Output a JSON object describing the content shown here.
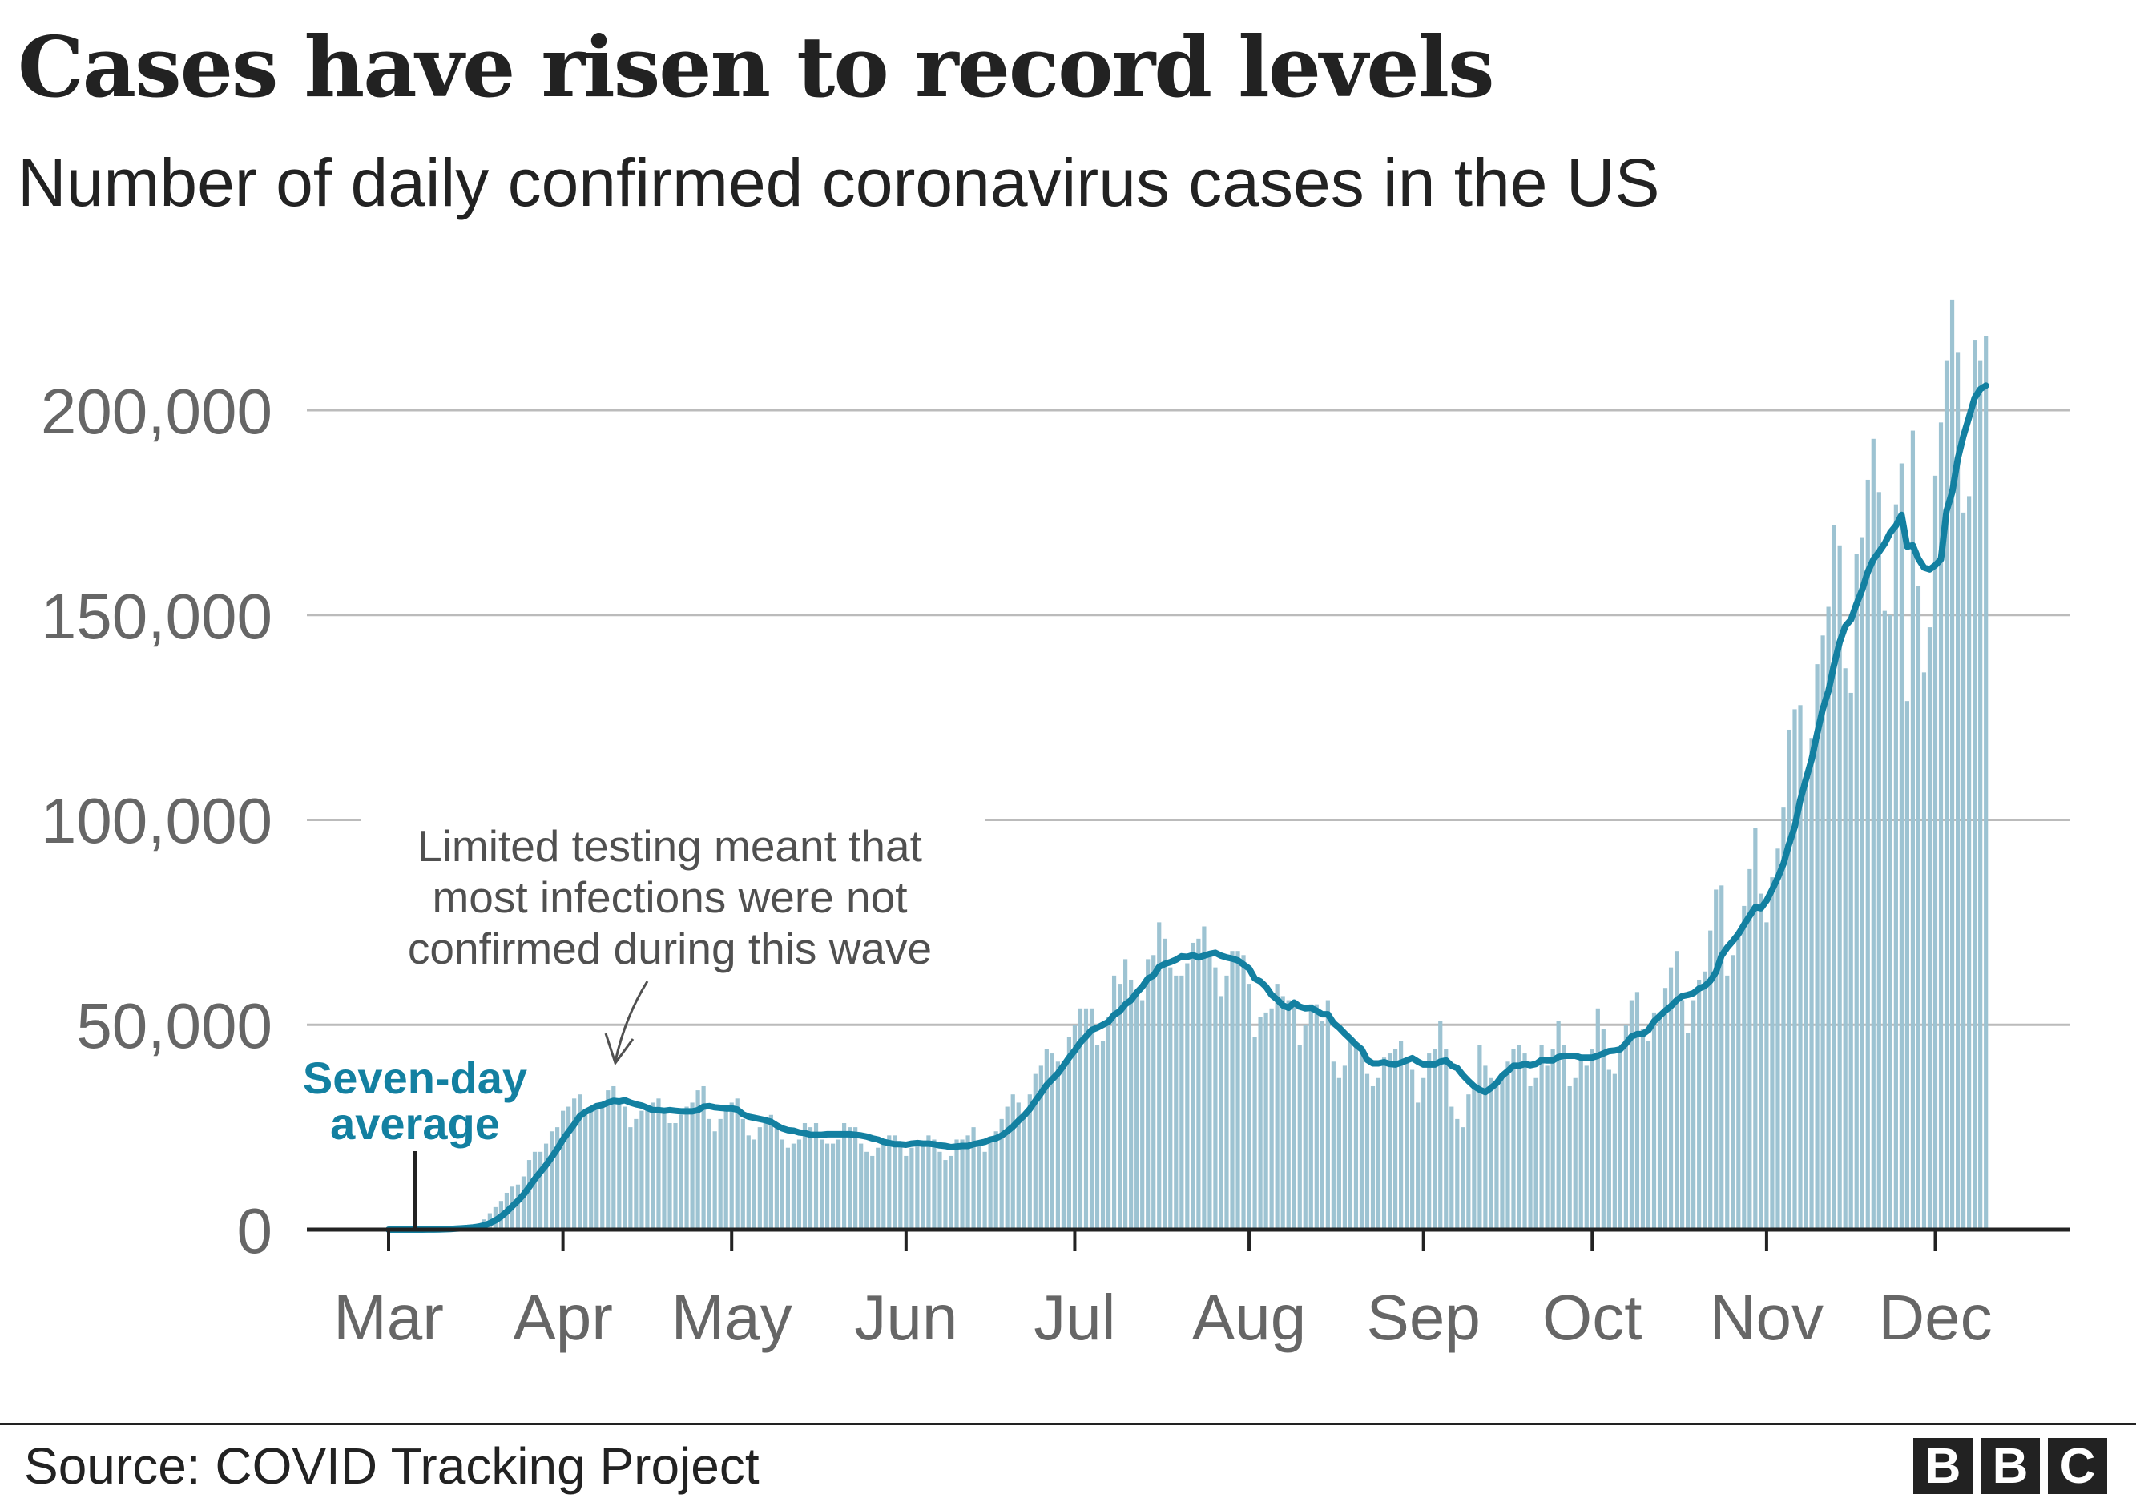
{
  "chart_data": {
    "type": "bar",
    "title": "Cases have risen to record levels",
    "subtitle": "Number of daily confirmed coronavirus cases in the US",
    "source": "Source: COVID Tracking Project",
    "logo": "BBC",
    "start_date": "2020-03-01",
    "ylim": [
      0,
      225000
    ],
    "y_ticks": [
      0,
      50000,
      100000,
      150000,
      200000
    ],
    "y_tick_labels": [
      "0",
      "50,000",
      "100,000",
      "150,000",
      "200,000"
    ],
    "x_tick_labels": [
      "Mar",
      "Apr",
      "May",
      "Jun",
      "Jul",
      "Aug",
      "Sep",
      "Oct",
      "Nov",
      "Dec"
    ],
    "grid": "horizontal",
    "colors": {
      "bars": "#9DC3D2",
      "average": "#1380A1",
      "axis": "#222222",
      "grid": "#BBBBBB"
    },
    "series": [
      {
        "name": "Daily confirmed cases",
        "kind": "bar"
      },
      {
        "name": "Seven-day average",
        "kind": "line"
      }
    ],
    "daily_cases": [
      0,
      0,
      0,
      0,
      0,
      0,
      0,
      100,
      100,
      200,
      300,
      400,
      500,
      600,
      800,
      1000,
      1500,
      2500,
      4000,
      5500,
      7000,
      9000,
      10500,
      11000,
      13000,
      17000,
      19000,
      19000,
      21000,
      24000,
      25000,
      29000,
      30000,
      32000,
      33000,
      28000,
      29000,
      30000,
      31000,
      34000,
      35000,
      32000,
      30000,
      25000,
      27000,
      29000,
      30000,
      31000,
      32000,
      29000,
      26000,
      26000,
      28000,
      30000,
      31000,
      34000,
      35000,
      27000,
      24000,
      27000,
      29000,
      31000,
      32000,
      27000,
      23000,
      22000,
      25000,
      27000,
      28000,
      26000,
      22000,
      20000,
      21000,
      22000,
      26000,
      25000,
      26000,
      22000,
      21000,
      21000,
      22000,
      26000,
      25000,
      25000,
      21000,
      19000,
      18000,
      20000,
      22000,
      23000,
      23000,
      21000,
      18000,
      20000,
      21000,
      21000,
      23000,
      22000,
      19000,
      17000,
      18000,
      22000,
      22000,
      23000,
      25000,
      21000,
      19000,
      22000,
      24000,
      27000,
      30000,
      33000,
      31000,
      28000,
      33000,
      38000,
      40000,
      44000,
      43000,
      41000,
      41000,
      47000,
      50000,
      54000,
      54000,
      54000,
      45000,
      46000,
      52000,
      62000,
      60000,
      66000,
      61000,
      58000,
      56000,
      66000,
      67000,
      75000,
      71000,
      64000,
      62000,
      62000,
      65000,
      70000,
      71000,
      74000,
      67000,
      64000,
      57000,
      62000,
      68000,
      68000,
      67000,
      60000,
      47000,
      52000,
      53000,
      54000,
      60000,
      57000,
      56000,
      56000,
      45000,
      50000,
      55000,
      55000,
      51000,
      56000,
      41000,
      37000,
      40000,
      46000,
      45000,
      43000,
      38000,
      35000,
      37000,
      42000,
      43000,
      44000,
      46000,
      42000,
      39000,
      31000,
      37000,
      43000,
      44000,
      51000,
      44000,
      30000,
      27000,
      25000,
      33000,
      35000,
      45000,
      40000,
      37000,
      35000,
      38000,
      41000,
      44000,
      45000,
      43000,
      35000,
      37000,
      45000,
      40000,
      44000,
      51000,
      45000,
      35000,
      37000,
      42000,
      40000,
      44000,
      54000,
      49000,
      39000,
      38000,
      44000,
      50000,
      56000,
      58000,
      49000,
      46000,
      53000,
      53000,
      59000,
      64000,
      68000,
      56000,
      48000,
      56000,
      61000,
      63000,
      73000,
      83000,
      84000,
      62000,
      67000,
      73000,
      79000,
      88000,
      98000,
      82000,
      75000,
      86000,
      93000,
      103000,
      122000,
      127000,
      128000,
      110000,
      120000,
      138000,
      145000,
      152000,
      172000,
      167000,
      137000,
      131000,
      165000,
      169000,
      183000,
      193000,
      180000,
      151000,
      150000,
      177000,
      187000,
      129000,
      195000,
      157000,
      136000,
      147000,
      184000,
      197000,
      212000,
      227000,
      214000,
      175000,
      179000,
      217000,
      212000,
      218000
    ],
    "annotations": {
      "testing_note": [
        "Limited testing meant that",
        "most infections were not",
        "confirmed during this wave"
      ],
      "average_label": [
        "Seven-day",
        "average"
      ]
    }
  }
}
